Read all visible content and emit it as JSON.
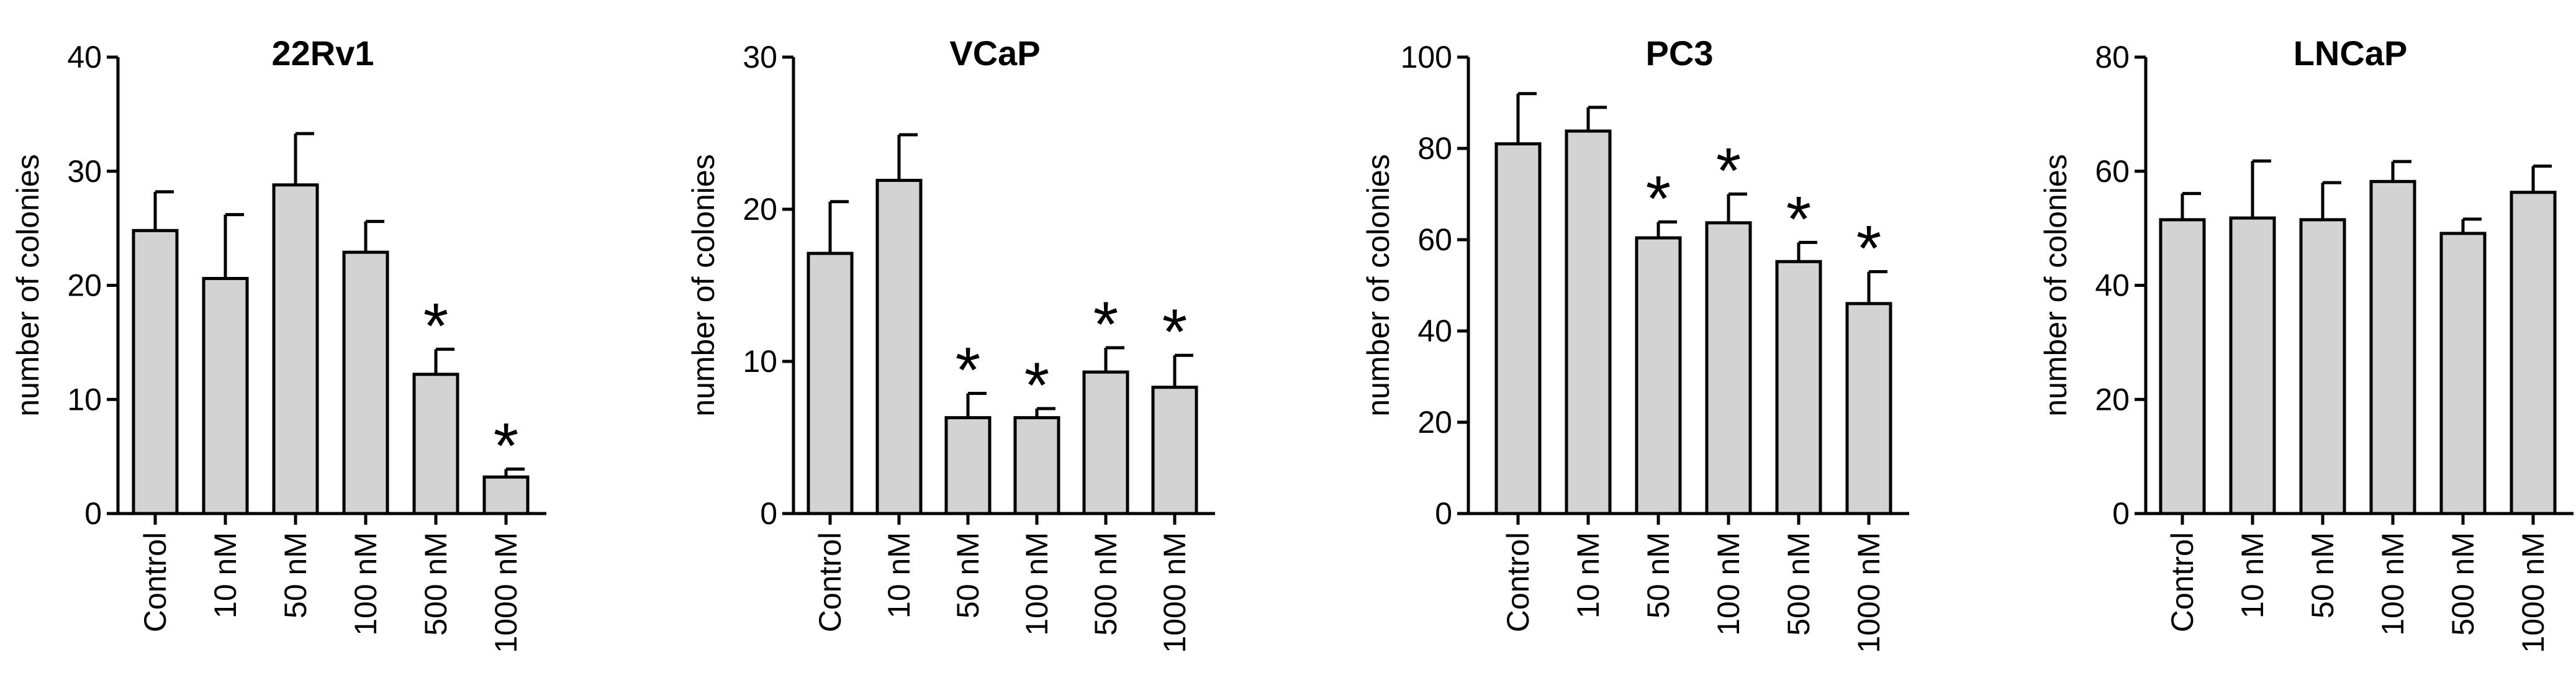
{
  "figure": {
    "bar_color": "#d3d3d3",
    "stroke_color": "#000000"
  },
  "chart_data": [
    {
      "type": "bar",
      "title": "22Rv1",
      "ylabel": "number of colonies",
      "xlabel": "",
      "ylim": [
        0,
        40
      ],
      "yticks": [
        0,
        10,
        20,
        30,
        40
      ],
      "categories": [
        "Control",
        "10 nM",
        "50 nM",
        "100 nM",
        "500 nM",
        "1000 nM"
      ],
      "values": [
        24.8,
        20.6,
        28.8,
        22.9,
        12.2,
        3.2
      ],
      "errors": [
        3.4,
        5.6,
        4.5,
        2.7,
        2.2,
        0.7
      ],
      "significance": [
        "",
        "",
        "",
        "",
        "*",
        "*"
      ]
    },
    {
      "type": "bar",
      "title": "VCaP",
      "ylabel": "number of colonies",
      "xlabel": "",
      "ylim": [
        0,
        30
      ],
      "yticks": [
        0,
        10,
        20,
        30
      ],
      "categories": [
        "Control",
        "10 nM",
        "50 nM",
        "100 nM",
        "500 nM",
        "1000 nM"
      ],
      "values": [
        17.1,
        21.9,
        6.3,
        6.3,
        9.3,
        8.3
      ],
      "errors": [
        3.4,
        3.0,
        1.6,
        0.6,
        1.6,
        2.1
      ],
      "significance": [
        "",
        "",
        "*",
        "*",
        "*",
        "*"
      ]
    },
    {
      "type": "bar",
      "title": "PC3",
      "ylabel": "number of colonies",
      "xlabel": "",
      "ylim": [
        0,
        100
      ],
      "yticks": [
        0,
        20,
        40,
        60,
        80,
        100
      ],
      "categories": [
        "Control",
        "10 nM",
        "50 nM",
        "100 nM",
        "500 nM",
        "1000 nM"
      ],
      "values": [
        81,
        83.8,
        60.4,
        63.7,
        55.2,
        46
      ],
      "errors": [
        11,
        5.2,
        3.5,
        6.3,
        4.2,
        7
      ],
      "significance": [
        "",
        "",
        "*",
        "*",
        "*",
        "*"
      ]
    },
    {
      "type": "bar",
      "title": "LNCaP",
      "ylabel": "number of colonies",
      "xlabel": "",
      "ylim": [
        0,
        80
      ],
      "yticks": [
        0,
        20,
        40,
        60,
        80
      ],
      "categories": [
        "Control",
        "10 nM",
        "50 nM",
        "100 nM",
        "500 nM",
        "1000 nM"
      ],
      "values": [
        51.5,
        51.8,
        51.5,
        58.2,
        49.1,
        56.3
      ],
      "errors": [
        4.6,
        10,
        6.5,
        3.5,
        2.5,
        4.6
      ],
      "significance": [
        "",
        "",
        "",
        "",
        "",
        ""
      ]
    }
  ]
}
